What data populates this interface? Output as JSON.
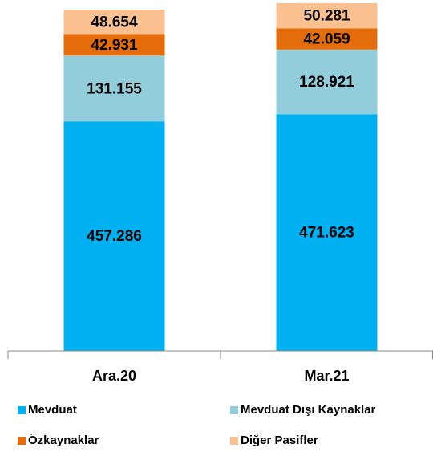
{
  "chart_data": {
    "type": "stacked-bar",
    "categories": [
      "Ara.20",
      "Mar.21"
    ],
    "series": [
      {
        "name": "Mevduat",
        "color": "#00b0f0",
        "values": [
          457.286,
          471.623
        ]
      },
      {
        "name": "Mevduat Dışı Kaynaklar",
        "color": "#92cddc",
        "values": [
          131.155,
          128.921
        ]
      },
      {
        "name": "Özkaynaklar",
        "color": "#e46c0a",
        "values": [
          42.931,
          42.059
        ]
      },
      {
        "name": "Diğer Pasifler",
        "color": "#fac090",
        "values": [
          48.654,
          50.281
        ]
      }
    ]
  }
}
